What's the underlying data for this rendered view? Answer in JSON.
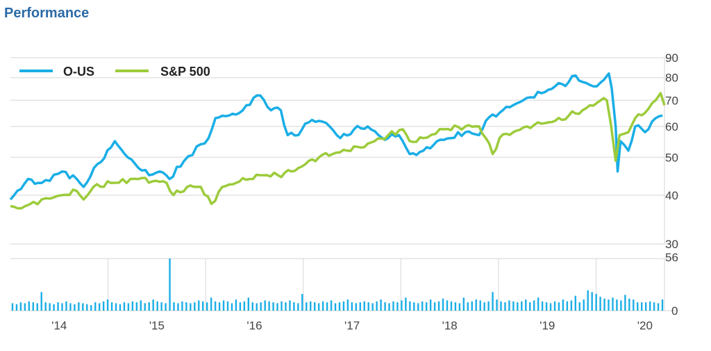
{
  "header": {
    "title": "Performance"
  },
  "chart_data": {
    "type": "line",
    "title": "Performance",
    "yscale": "log",
    "ylim": [
      30,
      90
    ],
    "yticks": [
      30,
      40,
      50,
      60,
      70,
      80,
      90
    ],
    "xlim": [
      2014.0,
      2020.7
    ],
    "xticks": [
      {
        "label": "'14",
        "at": 2014.5
      },
      {
        "label": "'15",
        "at": 2015.5
      },
      {
        "label": "'16",
        "at": 2016.5
      },
      {
        "label": "'17",
        "at": 2017.5
      },
      {
        "label": "'18",
        "at": 2018.5
      },
      {
        "label": "'19",
        "at": 2019.5
      },
      {
        "label": "'20",
        "at": 2020.5
      }
    ],
    "legend_position": "top-left",
    "colors": {
      "o_us": "#1aaee6",
      "sp500": "#9ccb3b"
    },
    "series": [
      {
        "name": "O-US",
        "color": "#1aaee6",
        "x": [
          2014.0,
          2014.18,
          2014.32,
          2014.53,
          2014.68,
          2014.75,
          2014.89,
          2015.03,
          2015.07,
          2015.17,
          2015.31,
          2015.42,
          2015.53,
          2015.63,
          2015.78,
          2015.95,
          2016.03,
          2016.1,
          2016.24,
          2016.38,
          2016.49,
          2016.56,
          2016.67,
          2016.77,
          2016.84,
          2016.95,
          2017.02,
          2017.16,
          2017.27,
          2017.38,
          2017.52,
          2017.66,
          2017.77,
          2017.87,
          2017.98,
          2018.09,
          2018.23,
          2018.37,
          2018.51,
          2018.66,
          2018.8,
          2018.87,
          2019.01,
          2019.15,
          2019.29,
          2019.44,
          2019.58,
          2019.72,
          2019.79,
          2019.86,
          2019.97,
          2020.08,
          2020.13,
          2020.16,
          2020.2,
          2020.22,
          2020.25,
          2020.33,
          2020.4,
          2020.5,
          2020.61,
          2020.68
        ],
        "y": [
          39,
          44,
          43,
          46,
          44,
          42,
          48,
          53,
          55,
          51,
          47,
          45,
          46,
          44,
          49,
          54,
          56,
          63,
          64,
          66,
          71,
          72,
          66,
          66,
          57,
          57,
          61,
          62,
          60,
          56,
          59,
          60,
          57,
          56,
          57,
          51,
          52,
          55,
          56,
          58,
          57,
          62,
          65,
          68,
          71,
          73,
          76,
          78,
          81,
          78,
          76,
          79,
          82,
          75,
          60,
          46,
          55,
          52,
          60,
          58,
          63,
          64
        ]
      },
      {
        "name": "S&P 500",
        "color": "#9ccb3b",
        "x": [
          2014.0,
          2014.11,
          2014.32,
          2014.53,
          2014.68,
          2014.75,
          2014.85,
          2015.03,
          2015.31,
          2015.6,
          2015.67,
          2015.81,
          2015.95,
          2016.06,
          2016.17,
          2016.31,
          2016.45,
          2016.59,
          2016.74,
          2016.88,
          2017.02,
          2017.16,
          2017.3,
          2017.45,
          2017.59,
          2017.73,
          2017.87,
          2018.02,
          2018.09,
          2018.23,
          2018.44,
          2018.66,
          2018.8,
          2018.87,
          2018.94,
          2019.01,
          2019.15,
          2019.29,
          2019.44,
          2019.58,
          2019.72,
          2019.86,
          2020.01,
          2020.11,
          2020.15,
          2020.2,
          2020.24,
          2020.33,
          2020.4,
          2020.5,
          2020.61,
          2020.66,
          2020.7
        ],
        "y": [
          37.5,
          37,
          39,
          40,
          41,
          39,
          42,
          43,
          44,
          43,
          40,
          42,
          42,
          38,
          42,
          43,
          44,
          45,
          45,
          46,
          48,
          50,
          51,
          52,
          53,
          55,
          57,
          59,
          55,
          56,
          59,
          60,
          60,
          56,
          51,
          56,
          58,
          60,
          61,
          62,
          64,
          66,
          69,
          70,
          61,
          49,
          57,
          58,
          63,
          65,
          70,
          73,
          68
        ]
      }
    ],
    "volume": {
      "ylim": [
        0,
        56
      ],
      "yticks": [
        0,
        56
      ],
      "values": [
        8,
        7,
        9,
        8,
        10,
        9,
        8,
        20,
        9,
        8,
        7,
        9,
        8,
        10,
        8,
        7,
        9,
        8,
        7,
        6,
        9,
        8,
        10,
        12,
        9,
        8,
        7,
        9,
        8,
        10,
        9,
        11,
        8,
        9,
        12,
        10,
        9,
        8,
        56,
        9,
        8,
        10,
        9,
        8,
        9,
        11,
        10,
        9,
        14,
        10,
        9,
        11,
        10,
        8,
        12,
        9,
        10,
        14,
        9,
        8,
        9,
        11,
        10,
        9,
        8,
        10,
        9,
        11,
        9,
        8,
        18,
        9,
        10,
        9,
        8,
        10,
        9,
        11,
        8,
        9,
        10,
        12,
        9,
        8,
        9,
        10,
        9,
        8,
        10,
        12,
        9,
        8,
        10,
        9,
        11,
        14,
        10,
        9,
        8,
        10,
        9,
        12,
        9,
        10,
        13,
        11,
        10,
        9,
        8,
        14,
        9,
        10,
        12,
        11,
        9,
        10,
        20,
        12,
        10,
        9,
        11,
        10,
        9,
        10,
        12,
        9,
        11,
        14,
        10,
        9,
        8,
        10,
        9,
        12,
        10,
        11,
        16,
        9,
        12,
        22,
        20,
        18,
        15,
        13,
        12,
        14,
        12,
        11,
        17,
        13,
        12,
        9,
        9,
        9,
        10,
        9,
        8,
        12
      ]
    }
  }
}
